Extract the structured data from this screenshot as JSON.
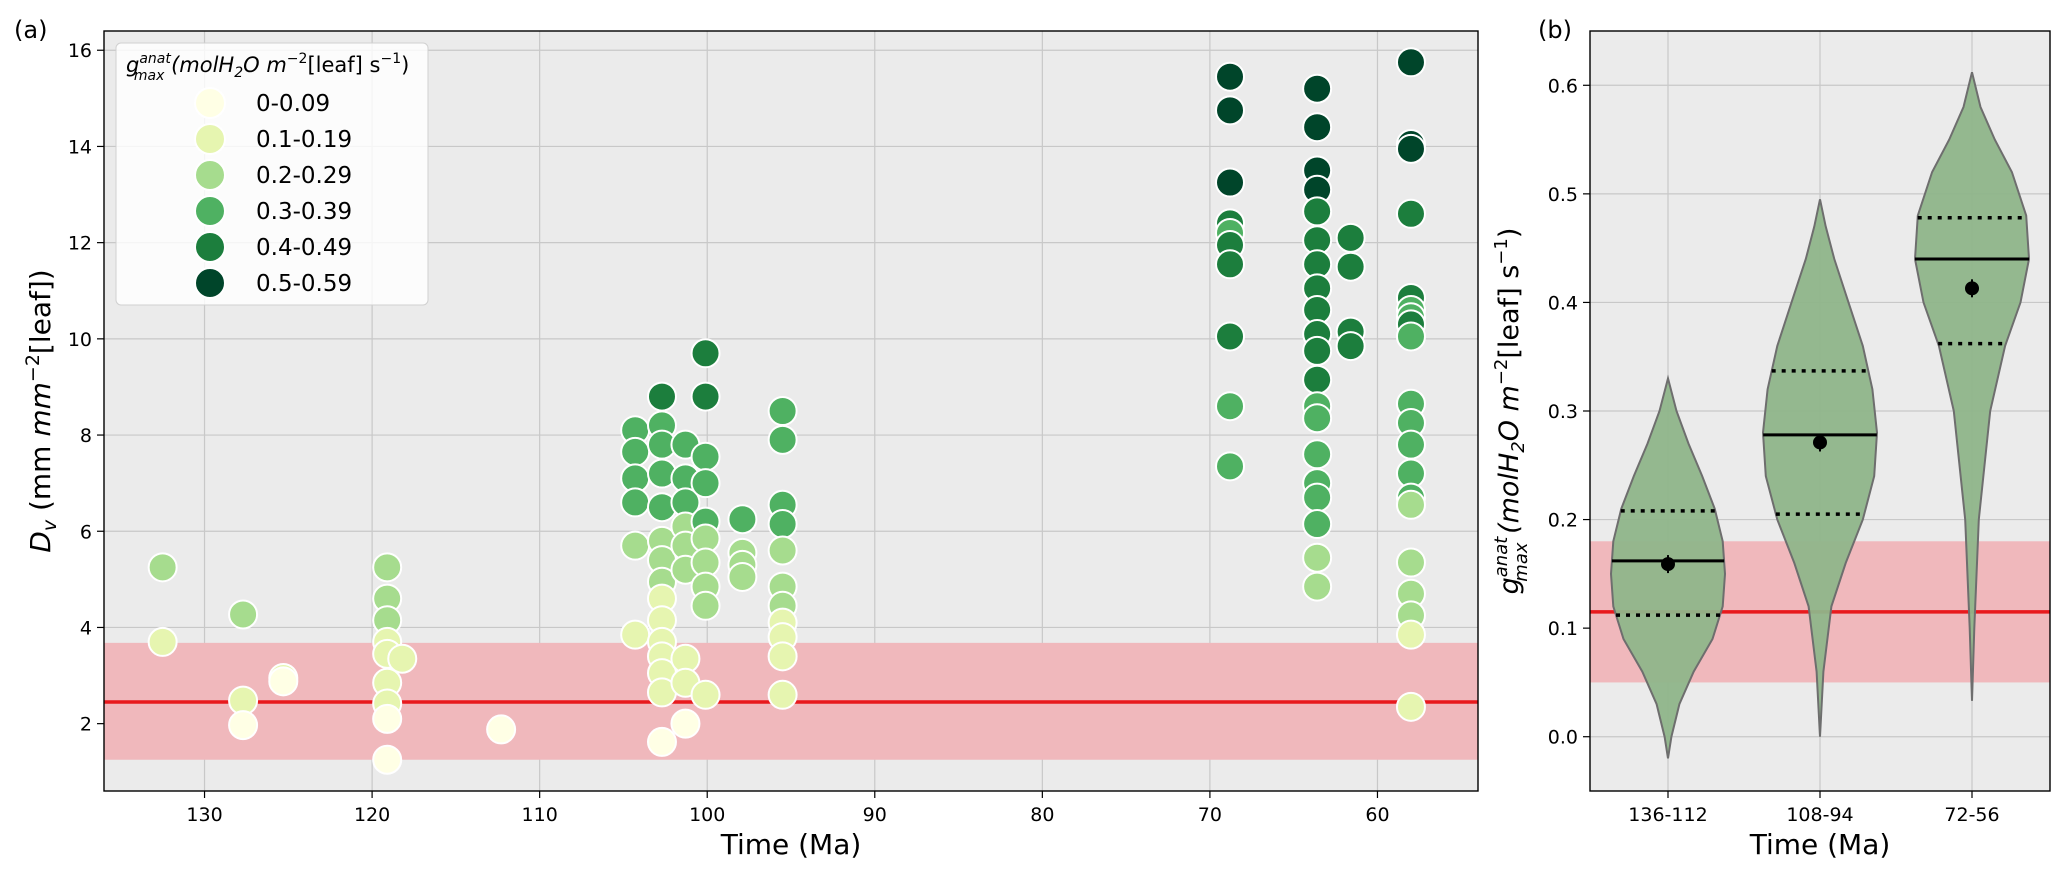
{
  "chart_data": [
    {
      "panel_label": "(a)",
      "type": "scatter",
      "xlabel": "Time (Ma)",
      "ylabel": "D_v (mm mm^-2[leaf])",
      "ylabel_parts": {
        "sym": "D",
        "sub": "v",
        "pre": " (mm ",
        "mm": "mm",
        "sup": "−2",
        "post": "[leaf])"
      },
      "xlim": [
        136,
        54
      ],
      "ylim": [
        0.6,
        16.4
      ],
      "x_reversed": true,
      "xticks": [
        "130",
        "120",
        "110",
        "100",
        "90",
        "80",
        "70",
        "60"
      ],
      "yticks": [
        "2",
        "4",
        "6",
        "8",
        "10",
        "12",
        "14",
        "16"
      ],
      "grid": true,
      "legend_placement": "top-left",
      "legend_title": "g_max^anat (molH2O m^-2[leaf] s^-1)",
      "legend_title_parts": {
        "g": "g",
        "sub": "max",
        "sup": "anat",
        "rest_a": " (molH",
        "h2o_sub": "2",
        "rest_b": "O m",
        "m_sup": "−2",
        "rest_c": "[leaf] s",
        "s_sup": "−1",
        "close": ")"
      },
      "classes": [
        {
          "name": "0-0.09",
          "color": "#ffffe5"
        },
        {
          "name": "0.1-0.19",
          "color": "#e6f5b0"
        },
        {
          "name": "0.2-0.29",
          "color": "#a6dc8e"
        },
        {
          "name": "0.3-0.39",
          "color": "#4fb162"
        },
        {
          "name": "0.4-0.49",
          "color": "#1c7e3d"
        },
        {
          "name": "0.5-0.59",
          "color": "#00452a"
        }
      ],
      "reference_line": 2.45,
      "reference_band": [
        1.25,
        3.68
      ],
      "points": [
        {
          "x": 132.5,
          "y": 5.25,
          "c": 2
        },
        {
          "x": 132.5,
          "y": 3.7,
          "c": 1
        },
        {
          "x": 127.7,
          "y": 4.27,
          "c": 2
        },
        {
          "x": 127.7,
          "y": 2.48,
          "c": 1
        },
        {
          "x": 127.7,
          "y": 1.97,
          "c": 0
        },
        {
          "x": 125.3,
          "y": 2.95,
          "c": 1
        },
        {
          "x": 125.3,
          "y": 2.88,
          "c": 0
        },
        {
          "x": 119.1,
          "y": 5.25,
          "c": 2
        },
        {
          "x": 119.1,
          "y": 4.6,
          "c": 2
        },
        {
          "x": 119.1,
          "y": 4.15,
          "c": 2
        },
        {
          "x": 119.1,
          "y": 3.7,
          "c": 1
        },
        {
          "x": 119.1,
          "y": 3.45,
          "c": 1
        },
        {
          "x": 119.1,
          "y": 2.85,
          "c": 1
        },
        {
          "x": 119.1,
          "y": 2.42,
          "c": 1
        },
        {
          "x": 119.1,
          "y": 2.1,
          "c": 0
        },
        {
          "x": 119.1,
          "y": 1.25,
          "c": 0
        },
        {
          "x": 118.2,
          "y": 3.35,
          "c": 1
        },
        {
          "x": 112.3,
          "y": 1.88,
          "c": 0
        },
        {
          "x": 104.3,
          "y": 8.1,
          "c": 3
        },
        {
          "x": 104.3,
          "y": 7.65,
          "c": 3
        },
        {
          "x": 104.3,
          "y": 7.1,
          "c": 3
        },
        {
          "x": 104.3,
          "y": 6.6,
          "c": 3
        },
        {
          "x": 104.3,
          "y": 5.7,
          "c": 2
        },
        {
          "x": 104.3,
          "y": 3.85,
          "c": 1
        },
        {
          "x": 102.7,
          "y": 8.8,
          "c": 4
        },
        {
          "x": 102.7,
          "y": 8.2,
          "c": 3
        },
        {
          "x": 102.7,
          "y": 7.8,
          "c": 3
        },
        {
          "x": 102.7,
          "y": 7.2,
          "c": 3
        },
        {
          "x": 102.7,
          "y": 6.5,
          "c": 3
        },
        {
          "x": 102.7,
          "y": 5.8,
          "c": 2
        },
        {
          "x": 102.7,
          "y": 5.4,
          "c": 2
        },
        {
          "x": 102.7,
          "y": 4.95,
          "c": 2
        },
        {
          "x": 102.7,
          "y": 4.6,
          "c": 1
        },
        {
          "x": 102.7,
          "y": 4.15,
          "c": 1
        },
        {
          "x": 102.7,
          "y": 3.7,
          "c": 1
        },
        {
          "x": 102.7,
          "y": 3.4,
          "c": 1
        },
        {
          "x": 102.7,
          "y": 3.05,
          "c": 1
        },
        {
          "x": 102.7,
          "y": 2.65,
          "c": 1
        },
        {
          "x": 102.7,
          "y": 1.62,
          "c": 0
        },
        {
          "x": 101.3,
          "y": 7.8,
          "c": 3
        },
        {
          "x": 101.3,
          "y": 7.1,
          "c": 3
        },
        {
          "x": 101.3,
          "y": 6.6,
          "c": 3
        },
        {
          "x": 101.3,
          "y": 6.1,
          "c": 2
        },
        {
          "x": 101.3,
          "y": 5.7,
          "c": 2
        },
        {
          "x": 101.3,
          "y": 5.2,
          "c": 2
        },
        {
          "x": 101.3,
          "y": 3.35,
          "c": 1
        },
        {
          "x": 101.3,
          "y": 2.85,
          "c": 1
        },
        {
          "x": 101.3,
          "y": 2.0,
          "c": 0
        },
        {
          "x": 100.1,
          "y": 9.7,
          "c": 4
        },
        {
          "x": 100.1,
          "y": 8.8,
          "c": 4
        },
        {
          "x": 100.1,
          "y": 7.55,
          "c": 3
        },
        {
          "x": 100.1,
          "y": 7.0,
          "c": 3
        },
        {
          "x": 100.1,
          "y": 6.2,
          "c": 3
        },
        {
          "x": 100.1,
          "y": 5.85,
          "c": 2
        },
        {
          "x": 100.1,
          "y": 5.35,
          "c": 2
        },
        {
          "x": 100.1,
          "y": 4.85,
          "c": 2
        },
        {
          "x": 100.1,
          "y": 4.45,
          "c": 2
        },
        {
          "x": 100.1,
          "y": 2.6,
          "c": 1
        },
        {
          "x": 97.9,
          "y": 6.25,
          "c": 3
        },
        {
          "x": 97.9,
          "y": 5.55,
          "c": 2
        },
        {
          "x": 97.9,
          "y": 5.3,
          "c": 2
        },
        {
          "x": 97.9,
          "y": 5.05,
          "c": 2
        },
        {
          "x": 95.5,
          "y": 8.5,
          "c": 3
        },
        {
          "x": 95.5,
          "y": 7.9,
          "c": 3
        },
        {
          "x": 95.5,
          "y": 6.55,
          "c": 3
        },
        {
          "x": 95.5,
          "y": 6.15,
          "c": 3
        },
        {
          "x": 95.5,
          "y": 5.6,
          "c": 2
        },
        {
          "x": 95.5,
          "y": 4.85,
          "c": 2
        },
        {
          "x": 95.5,
          "y": 4.45,
          "c": 2
        },
        {
          "x": 95.5,
          "y": 4.1,
          "c": 1
        },
        {
          "x": 95.5,
          "y": 3.8,
          "c": 1
        },
        {
          "x": 95.5,
          "y": 3.4,
          "c": 1
        },
        {
          "x": 95.5,
          "y": 2.6,
          "c": 1
        },
        {
          "x": 68.8,
          "y": 15.45,
          "c": 5
        },
        {
          "x": 68.8,
          "y": 14.75,
          "c": 5
        },
        {
          "x": 68.8,
          "y": 13.25,
          "c": 5
        },
        {
          "x": 68.8,
          "y": 12.4,
          "c": 4
        },
        {
          "x": 68.8,
          "y": 12.2,
          "c": 3
        },
        {
          "x": 68.8,
          "y": 11.95,
          "c": 4
        },
        {
          "x": 68.8,
          "y": 11.55,
          "c": 4
        },
        {
          "x": 68.8,
          "y": 10.05,
          "c": 4
        },
        {
          "x": 68.8,
          "y": 8.6,
          "c": 3
        },
        {
          "x": 68.8,
          "y": 7.35,
          "c": 3
        },
        {
          "x": 63.6,
          "y": 15.2,
          "c": 5
        },
        {
          "x": 63.6,
          "y": 14.4,
          "c": 5
        },
        {
          "x": 63.6,
          "y": 13.5,
          "c": 5
        },
        {
          "x": 63.6,
          "y": 13.1,
          "c": 5
        },
        {
          "x": 63.6,
          "y": 12.65,
          "c": 4
        },
        {
          "x": 63.6,
          "y": 12.05,
          "c": 4
        },
        {
          "x": 63.6,
          "y": 11.55,
          "c": 4
        },
        {
          "x": 63.6,
          "y": 11.05,
          "c": 4
        },
        {
          "x": 63.6,
          "y": 10.6,
          "c": 4
        },
        {
          "x": 63.6,
          "y": 10.1,
          "c": 4
        },
        {
          "x": 63.6,
          "y": 9.75,
          "c": 4
        },
        {
          "x": 63.6,
          "y": 9.15,
          "c": 4
        },
        {
          "x": 63.6,
          "y": 8.6,
          "c": 3
        },
        {
          "x": 63.6,
          "y": 8.35,
          "c": 3
        },
        {
          "x": 63.6,
          "y": 7.6,
          "c": 3
        },
        {
          "x": 63.6,
          "y": 7.0,
          "c": 3
        },
        {
          "x": 63.6,
          "y": 6.7,
          "c": 3
        },
        {
          "x": 63.6,
          "y": 6.15,
          "c": 3
        },
        {
          "x": 63.6,
          "y": 5.45,
          "c": 2
        },
        {
          "x": 63.6,
          "y": 4.85,
          "c": 2
        },
        {
          "x": 61.6,
          "y": 12.1,
          "c": 4
        },
        {
          "x": 61.6,
          "y": 11.5,
          "c": 4
        },
        {
          "x": 61.6,
          "y": 10.15,
          "c": 4
        },
        {
          "x": 61.6,
          "y": 9.85,
          "c": 4
        },
        {
          "x": 58.0,
          "y": 15.75,
          "c": 5
        },
        {
          "x": 58.0,
          "y": 14.05,
          "c": 5
        },
        {
          "x": 58.0,
          "y": 13.95,
          "c": 5
        },
        {
          "x": 58.0,
          "y": 12.6,
          "c": 4
        },
        {
          "x": 58.0,
          "y": 10.85,
          "c": 4
        },
        {
          "x": 58.0,
          "y": 10.6,
          "c": 3
        },
        {
          "x": 58.0,
          "y": 10.45,
          "c": 3
        },
        {
          "x": 58.0,
          "y": 10.3,
          "c": 4
        },
        {
          "x": 58.0,
          "y": 10.05,
          "c": 3
        },
        {
          "x": 58.0,
          "y": 8.65,
          "c": 3
        },
        {
          "x": 58.0,
          "y": 8.25,
          "c": 3
        },
        {
          "x": 58.0,
          "y": 7.8,
          "c": 3
        },
        {
          "x": 58.0,
          "y": 7.2,
          "c": 3
        },
        {
          "x": 58.0,
          "y": 6.7,
          "c": 3
        },
        {
          "x": 58.0,
          "y": 6.55,
          "c": 2
        },
        {
          "x": 58.0,
          "y": 5.35,
          "c": 2
        },
        {
          "x": 58.0,
          "y": 4.7,
          "c": 2
        },
        {
          "x": 58.0,
          "y": 4.25,
          "c": 2
        },
        {
          "x": 58.0,
          "y": 3.85,
          "c": 1
        },
        {
          "x": 58.0,
          "y": 2.35,
          "c": 1
        }
      ]
    },
    {
      "panel_label": "(b)",
      "type": "violin",
      "xlabel": "Time (Ma)",
      "ylabel": "g_max^anat (molH2O m^-2[leaf] s^-1)",
      "ylabel_parts": {
        "g": "g",
        "sub": "max",
        "sup": "anat",
        "rest_a": " (molH",
        "h2o_sub": "2",
        "rest_b": "O m",
        "m_sup": "−2",
        "rest_c": "[leaf] s",
        "s_sup": "−1",
        "close": ")"
      },
      "categories": [
        "136-112",
        "108-94",
        "72-56"
      ],
      "ylim": [
        -0.05,
        0.65
      ],
      "yticks": [
        "0.0",
        "0.1",
        "0.2",
        "0.3",
        "0.4",
        "0.5",
        "0.6"
      ],
      "grid": true,
      "violin_color": "#8fb58a",
      "reference_line": 0.115,
      "reference_band": [
        0.05,
        0.18
      ],
      "violins": [
        {
          "range": [
            -0.02,
            0.33
          ],
          "median": 0.162,
          "q1": 0.112,
          "q3": 0.208,
          "mean": 0.159,
          "density": [
            [
              -0.02,
              0.0
            ],
            [
              0.0,
              0.06
            ],
            [
              0.03,
              0.2
            ],
            [
              0.06,
              0.45
            ],
            [
              0.09,
              0.78
            ],
            [
              0.12,
              0.96
            ],
            [
              0.15,
              1.0
            ],
            [
              0.18,
              0.96
            ],
            [
              0.21,
              0.82
            ],
            [
              0.24,
              0.6
            ],
            [
              0.27,
              0.36
            ],
            [
              0.3,
              0.15
            ],
            [
              0.33,
              0.0
            ]
          ]
        },
        {
          "range": [
            0.0,
            0.495
          ],
          "median": 0.278,
          "q1": 0.205,
          "q3": 0.337,
          "mean": 0.271,
          "density": [
            [
              0.0,
              0.0
            ],
            [
              0.06,
              0.06
            ],
            [
              0.12,
              0.2
            ],
            [
              0.16,
              0.45
            ],
            [
              0.2,
              0.75
            ],
            [
              0.24,
              0.95
            ],
            [
              0.28,
              1.0
            ],
            [
              0.32,
              0.92
            ],
            [
              0.36,
              0.75
            ],
            [
              0.4,
              0.5
            ],
            [
              0.44,
              0.25
            ],
            [
              0.47,
              0.1
            ],
            [
              0.495,
              0.0
            ]
          ]
        },
        {
          "range": [
            0.033,
            0.612
          ],
          "median": 0.44,
          "q1": 0.362,
          "q3": 0.478,
          "mean": 0.413,
          "density": [
            [
              0.033,
              0.0
            ],
            [
              0.1,
              0.04
            ],
            [
              0.2,
              0.12
            ],
            [
              0.3,
              0.32
            ],
            [
              0.36,
              0.58
            ],
            [
              0.4,
              0.85
            ],
            [
              0.44,
              1.0
            ],
            [
              0.48,
              0.95
            ],
            [
              0.52,
              0.7
            ],
            [
              0.55,
              0.4
            ],
            [
              0.58,
              0.15
            ],
            [
              0.612,
              0.0
            ]
          ]
        }
      ]
    }
  ]
}
